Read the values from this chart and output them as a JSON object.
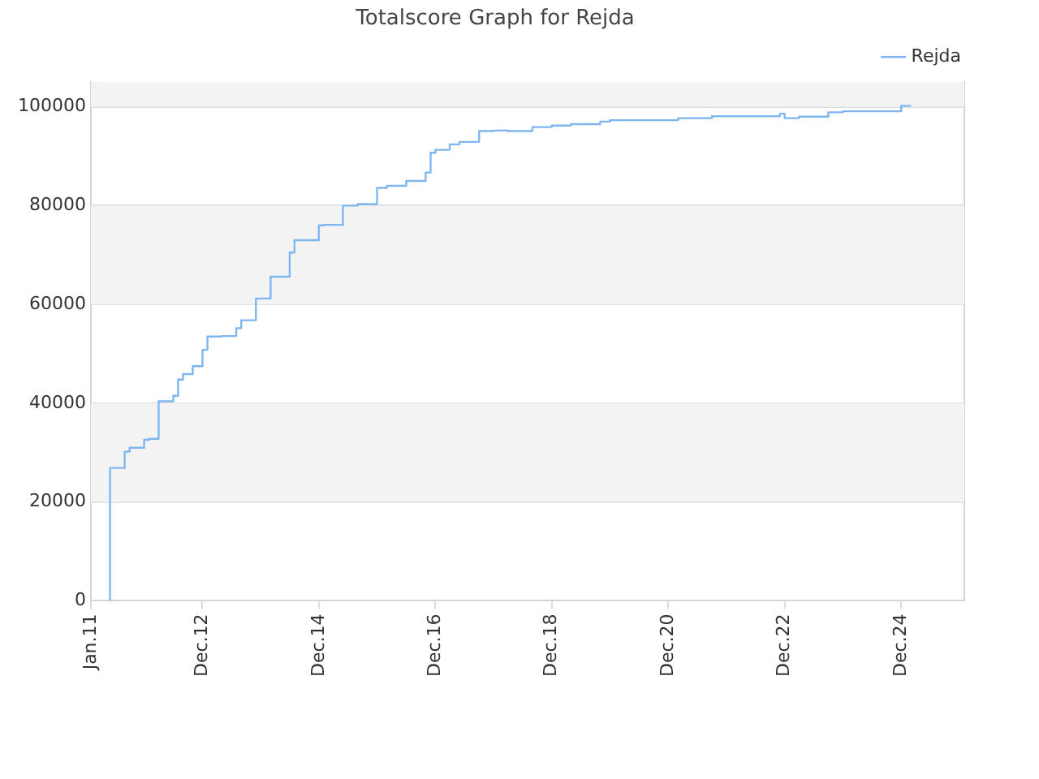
{
  "chart_data": {
    "type": "step",
    "title": "Totalscore Graph for Rejda",
    "x": [
      "2011-05",
      "2011-05",
      "2011-06",
      "2011-08",
      "2011-09",
      "2011-12",
      "2012-01",
      "2012-03",
      "2012-06",
      "2012-07",
      "2012-08",
      "2012-10",
      "2012-12",
      "2013-01",
      "2013-04",
      "2013-07",
      "2013-08",
      "2013-11",
      "2014-02",
      "2014-04",
      "2014-06",
      "2014-07",
      "2014-12",
      "2015-01",
      "2015-05",
      "2015-08",
      "2015-12",
      "2016-02",
      "2016-06",
      "2016-07",
      "2016-10",
      "2016-11",
      "2016-12",
      "2017-03",
      "2017-05",
      "2017-09",
      "2017-12",
      "2018-03",
      "2018-08",
      "2018-12",
      "2019-04",
      "2019-10",
      "2019-12",
      "2021-02",
      "2021-09",
      "2021-12",
      "2022-11",
      "2022-12",
      "2023-03",
      "2023-09",
      "2023-12",
      "2024-06",
      "2024-12",
      "2025-01",
      "2025-02"
    ],
    "series": [
      {
        "name": "Rejda",
        "color": "#7eb6f0",
        "values": [
          0,
          23500,
          26900,
          26900,
          30200,
          31000,
          32600,
          32800,
          40400,
          41500,
          44800,
          45900,
          47500,
          50800,
          53500,
          53600,
          55200,
          56800,
          61200,
          65600,
          65600,
          70500,
          73000,
          76000,
          76100,
          80000,
          80300,
          83600,
          84000,
          85000,
          85000,
          86700,
          90700,
          91300,
          92400,
          92900,
          95100,
          95200,
          95100,
          95900,
          96200,
          96500,
          97000,
          97300,
          97700,
          98100,
          98100,
          98600,
          97700,
          98000,
          98900,
          99100,
          99100,
          100200,
          100200
        ]
      }
    ],
    "xlim": [
      "2011-01",
      "2026-01"
    ],
    "xticks": [
      {
        "value": "2011-01",
        "label": "Jan.11"
      },
      {
        "value": "2012-12",
        "label": "Dec.12"
      },
      {
        "value": "2014-12",
        "label": "Dec.14"
      },
      {
        "value": "2016-12",
        "label": "Dec.16"
      },
      {
        "value": "2018-12",
        "label": "Dec.18"
      },
      {
        "value": "2020-12",
        "label": "Dec.20"
      },
      {
        "value": "2022-12",
        "label": "Dec.22"
      },
      {
        "value": "2024-12",
        "label": "Dec.24"
      }
    ],
    "ylim": [
      0,
      105000
    ],
    "yticks": [
      0,
      20000,
      40000,
      60000,
      80000,
      100000
    ],
    "grid": "y",
    "legend": "top right",
    "marker": "none",
    "line_style": "solid"
  }
}
